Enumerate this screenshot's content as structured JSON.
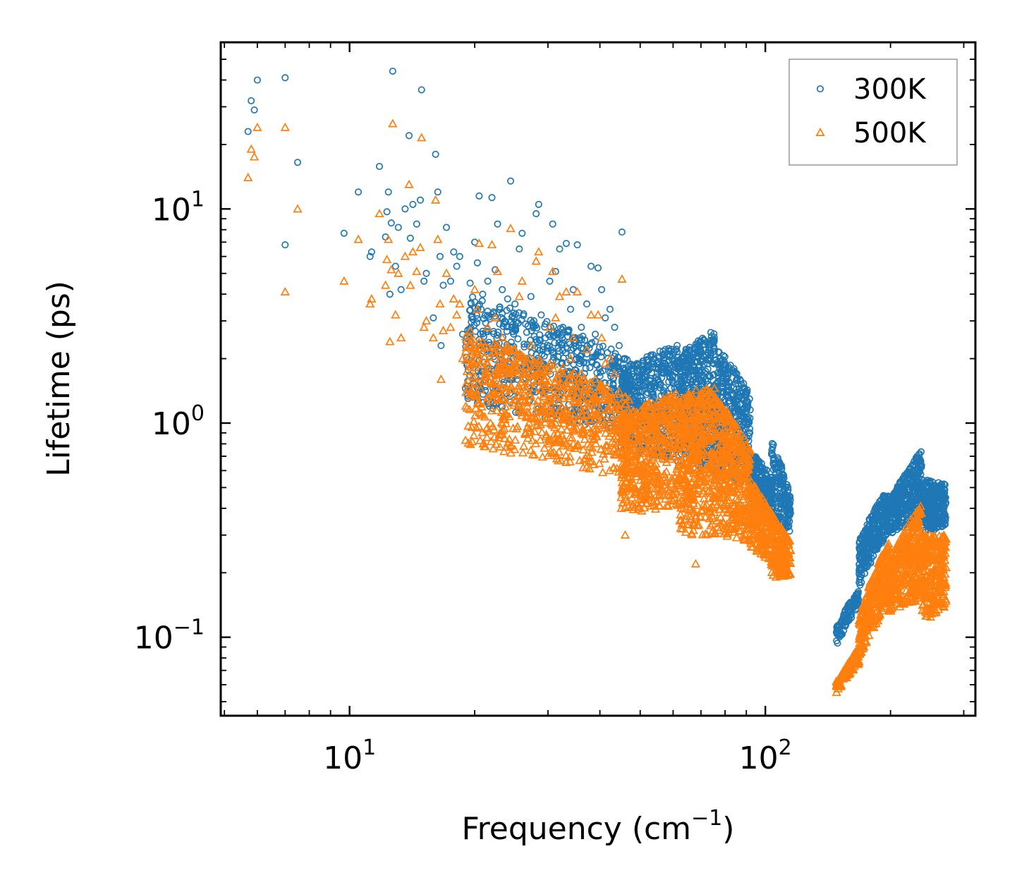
{
  "chart_data": {
    "type": "scatter",
    "title": "",
    "xlabel": "Frequency (cm",
    "xlabel_sup": "−1",
    "xlabel_end": ")",
    "ylabel": "Lifetime (ps)",
    "xscale": "log",
    "yscale": "log",
    "xlim": [
      4.9,
      320
    ],
    "ylim": [
      0.043,
      60
    ],
    "x_ticks": [
      {
        "value": 10,
        "base": "10",
        "exp": "1"
      },
      {
        "value": 100,
        "base": "10",
        "exp": "2"
      }
    ],
    "y_ticks": [
      {
        "value": 0.1,
        "base": "10",
        "exp": "−1"
      },
      {
        "value": 1,
        "base": "10",
        "exp": "0"
      },
      {
        "value": 10,
        "base": "10",
        "exp": "1"
      }
    ],
    "legend": {
      "position": "top-right",
      "entries": [
        {
          "label": "300K",
          "marker": "circle",
          "color": "#1f77b4"
        },
        {
          "label": "500K",
          "marker": "triangle",
          "color": "#ff7f0e"
        }
      ]
    },
    "series": [
      {
        "name": "300K",
        "marker": "circle",
        "color": "#1f77b4",
        "points": [
          [
            5.7,
            23
          ],
          [
            5.8,
            32
          ],
          [
            5.9,
            29
          ],
          [
            6.0,
            40
          ],
          [
            7.0,
            41
          ],
          [
            7.0,
            6.8
          ],
          [
            7.5,
            16.5
          ],
          [
            9.7,
            7.7
          ],
          [
            10.5,
            12
          ],
          [
            11.2,
            6
          ],
          [
            11.3,
            6.3
          ],
          [
            11.8,
            15.8
          ],
          [
            12.2,
            7.4
          ],
          [
            12.3,
            9.7
          ],
          [
            12.4,
            12
          ],
          [
            12.5,
            4
          ],
          [
            12.6,
            8.6
          ],
          [
            12.7,
            44
          ],
          [
            12.9,
            5.4
          ],
          [
            13.1,
            8.2
          ],
          [
            13.3,
            4.2
          ],
          [
            13.6,
            10
          ],
          [
            13.9,
            22
          ],
          [
            14.0,
            7.3
          ],
          [
            14.2,
            10.5
          ],
          [
            14.5,
            8.5
          ],
          [
            14.8,
            11
          ],
          [
            14.9,
            36
          ],
          [
            15.1,
            4.6
          ],
          [
            15.3,
            5
          ],
          [
            15.9,
            3.1
          ],
          [
            16.1,
            18
          ],
          [
            16.3,
            12
          ],
          [
            16.5,
            6
          ],
          [
            16.6,
            2.3
          ],
          [
            16.8,
            4.4
          ],
          [
            17.1,
            8.2
          ],
          [
            17.5,
            4.6
          ],
          [
            17.8,
            6.3
          ],
          [
            18.1,
            5.4
          ],
          [
            18.4,
            6
          ],
          [
            18.7,
            2.6
          ],
          [
            19.0,
            1.45
          ],
          [
            19.5,
            4.5
          ],
          [
            20.0,
            7
          ],
          [
            20.3,
            5.6
          ],
          [
            20.5,
            11.5
          ],
          [
            20.9,
            4
          ],
          [
            21.5,
            4.6
          ],
          [
            22.0,
            11.3
          ],
          [
            22.4,
            5.2
          ],
          [
            22.7,
            8.5
          ],
          [
            23.3,
            4.2
          ],
          [
            24.0,
            3.8
          ],
          [
            24.4,
            13.5
          ],
          [
            25.0,
            3.6
          ],
          [
            25.6,
            6.5
          ],
          [
            26.0,
            7.7
          ],
          [
            26.5,
            2.9
          ],
          [
            27.3,
            3.9
          ],
          [
            28.1,
            9.5
          ],
          [
            28.5,
            10.5
          ],
          [
            28.9,
            3.2
          ],
          [
            29.6,
            2.5
          ],
          [
            30.3,
            4.6
          ],
          [
            30.8,
            8.5
          ],
          [
            31.3,
            5.1
          ],
          [
            32.0,
            6.5
          ],
          [
            32.6,
            2.8
          ],
          [
            33.2,
            6.9
          ],
          [
            34.0,
            3.4
          ],
          [
            34.5,
            4.2
          ],
          [
            35.3,
            6.8
          ],
          [
            36.1,
            2.8
          ],
          [
            37.2,
            3.6
          ],
          [
            38.1,
            5.4
          ],
          [
            39.0,
            2.6
          ],
          [
            39.6,
            5.3
          ],
          [
            40.4,
            4.2
          ],
          [
            41.2,
            3.1
          ],
          [
            42.3,
            3.4
          ],
          [
            43.4,
            2.8
          ],
          [
            44.5,
            2.3
          ],
          [
            45.2,
            7.8
          ],
          [
            46.0,
            2.0
          ],
          [
            47.1,
            1.5
          ]
        ],
        "clusters": [
          {
            "x0": 19,
            "x1": 47,
            "ylo_start": 1.2,
            "ylo_end": 0.9,
            "yhi_start": 4.0,
            "yhi_end": 2.0,
            "n": 700
          },
          {
            "x0": 45,
            "x1": 62,
            "ylo_start": 0.75,
            "ylo_end": 0.65,
            "yhi_start": 1.8,
            "yhi_end": 2.35,
            "n": 500
          },
          {
            "x0": 62,
            "x1": 76,
            "ylo_start": 0.65,
            "ylo_end": 0.58,
            "yhi_start": 2.1,
            "yhi_end": 2.75,
            "n": 450
          },
          {
            "x0": 76,
            "x1": 92,
            "ylo_start": 0.55,
            "ylo_end": 0.5,
            "yhi_start": 2.3,
            "yhi_end": 1.35,
            "n": 380
          },
          {
            "x0": 92,
            "x1": 104,
            "ylo_start": 0.42,
            "ylo_end": 0.36,
            "yhi_start": 0.75,
            "yhi_end": 0.55,
            "n": 220
          },
          {
            "x0": 103,
            "x1": 115,
            "ylo_start": 0.34,
            "ylo_end": 0.31,
            "yhi_start": 0.85,
            "yhi_end": 0.45,
            "n": 180
          },
          {
            "x0": 148,
            "x1": 168,
            "ylo_start": 0.09,
            "ylo_end": 0.14,
            "yhi_start": 0.11,
            "yhi_end": 0.17,
            "n": 100
          },
          {
            "x0": 168,
            "x1": 198,
            "ylo_start": 0.17,
            "ylo_end": 0.3,
            "yhi_start": 0.28,
            "yhi_end": 0.5,
            "n": 320
          },
          {
            "x0": 198,
            "x1": 238,
            "ylo_start": 0.3,
            "ylo_end": 0.36,
            "yhi_start": 0.42,
            "yhi_end": 0.75,
            "n": 380
          },
          {
            "x0": 238,
            "x1": 272,
            "ylo_start": 0.3,
            "ylo_end": 0.33,
            "yhi_start": 0.55,
            "yhi_end": 0.52,
            "n": 300
          }
        ]
      },
      {
        "name": "500K",
        "marker": "triangle",
        "color": "#ff7f0e",
        "points": [
          [
            5.7,
            14
          ],
          [
            5.8,
            19
          ],
          [
            5.9,
            17.5
          ],
          [
            6.0,
            24
          ],
          [
            7.0,
            24
          ],
          [
            7.0,
            4.1
          ],
          [
            7.5,
            10
          ],
          [
            9.7,
            4.6
          ],
          [
            10.5,
            7.2
          ],
          [
            11.2,
            3.6
          ],
          [
            11.3,
            3.8
          ],
          [
            11.8,
            9.5
          ],
          [
            12.2,
            4.4
          ],
          [
            12.3,
            5.8
          ],
          [
            12.4,
            7.2
          ],
          [
            12.5,
            2.4
          ],
          [
            12.6,
            5.2
          ],
          [
            12.7,
            25
          ],
          [
            12.9,
            3.2
          ],
          [
            13.1,
            5
          ],
          [
            13.3,
            2.5
          ],
          [
            13.6,
            6
          ],
          [
            13.9,
            13
          ],
          [
            14.0,
            4.4
          ],
          [
            14.2,
            6.3
          ],
          [
            14.5,
            5.1
          ],
          [
            14.8,
            6.6
          ],
          [
            14.9,
            21.5
          ],
          [
            15.1,
            2.8
          ],
          [
            15.3,
            3
          ],
          [
            15.9,
            2.5
          ],
          [
            16.1,
            11
          ],
          [
            16.3,
            7.2
          ],
          [
            16.5,
            3.6
          ],
          [
            16.6,
            1.6
          ],
          [
            16.8,
            2.7
          ],
          [
            17.1,
            5
          ],
          [
            17.5,
            2.8
          ],
          [
            17.8,
            3.8
          ],
          [
            18.1,
            3.2
          ],
          [
            18.4,
            3.6
          ],
          [
            18.7,
            2.0
          ],
          [
            19.0,
            0.83
          ],
          [
            19.5,
            2.7
          ],
          [
            20.0,
            4.2
          ],
          [
            20.3,
            3.4
          ],
          [
            20.5,
            6.9
          ],
          [
            20.9,
            2.4
          ],
          [
            21.5,
            2.8
          ],
          [
            22.0,
            6.8
          ],
          [
            22.4,
            3.1
          ],
          [
            22.7,
            5.1
          ],
          [
            23.3,
            2.5
          ],
          [
            24.0,
            2.3
          ],
          [
            24.4,
            8.1
          ],
          [
            25.0,
            2.2
          ],
          [
            25.6,
            3.9
          ],
          [
            26.0,
            4.6
          ],
          [
            26.5,
            1.7
          ],
          [
            27.3,
            2.3
          ],
          [
            28.1,
            5.7
          ],
          [
            28.5,
            6.3
          ],
          [
            28.9,
            1.9
          ],
          [
            29.6,
            1.5
          ],
          [
            30.3,
            2.8
          ],
          [
            30.8,
            5.1
          ],
          [
            31.3,
            3.1
          ],
          [
            32.0,
            3.9
          ],
          [
            32.6,
            1.7
          ],
          [
            33.2,
            4.1
          ],
          [
            34.0,
            2.0
          ],
          [
            34.5,
            2.5
          ],
          [
            35.3,
            4.1
          ],
          [
            36.1,
            1.7
          ],
          [
            37.2,
            2.2
          ],
          [
            38.1,
            3.2
          ],
          [
            39.0,
            1.6
          ],
          [
            39.6,
            3.2
          ],
          [
            40.4,
            2.5
          ],
          [
            41.2,
            1.9
          ],
          [
            42.3,
            2.0
          ],
          [
            43.4,
            1.7
          ],
          [
            44.5,
            1.4
          ],
          [
            45.2,
            4.7
          ],
          [
            46.0,
            0.3
          ],
          [
            68.0,
            0.22
          ]
        ],
        "clusters": [
          {
            "x0": 19,
            "x1": 47,
            "ylo_start": 0.78,
            "ylo_end": 0.55,
            "yhi_start": 2.6,
            "yhi_end": 1.3,
            "n": 700
          },
          {
            "x0": 45,
            "x1": 62,
            "ylo_start": 0.38,
            "ylo_end": 0.4,
            "yhi_start": 1.1,
            "yhi_end": 1.4,
            "n": 500
          },
          {
            "x0": 62,
            "x1": 76,
            "ylo_start": 0.3,
            "ylo_end": 0.3,
            "yhi_start": 1.3,
            "yhi_end": 1.6,
            "n": 450
          },
          {
            "x0": 76,
            "x1": 92,
            "ylo_start": 0.3,
            "ylo_end": 0.28,
            "yhi_start": 1.35,
            "yhi_end": 0.75,
            "n": 380
          },
          {
            "x0": 92,
            "x1": 104,
            "ylo_start": 0.26,
            "ylo_end": 0.22,
            "yhi_start": 0.55,
            "yhi_end": 0.38,
            "n": 220
          },
          {
            "x0": 103,
            "x1": 115,
            "ylo_start": 0.19,
            "ylo_end": 0.19,
            "yhi_start": 0.38,
            "yhi_end": 0.28,
            "n": 180
          },
          {
            "x0": 148,
            "x1": 168,
            "ylo_start": 0.054,
            "ylo_end": 0.075,
            "yhi_start": 0.062,
            "yhi_end": 0.09,
            "n": 100
          },
          {
            "x0": 168,
            "x1": 198,
            "ylo_start": 0.08,
            "ylo_end": 0.14,
            "yhi_start": 0.12,
            "yhi_end": 0.28,
            "n": 320
          },
          {
            "x0": 198,
            "x1": 238,
            "ylo_start": 0.13,
            "ylo_end": 0.15,
            "yhi_start": 0.22,
            "yhi_end": 0.42,
            "n": 380
          },
          {
            "x0": 238,
            "x1": 272,
            "ylo_start": 0.12,
            "ylo_end": 0.13,
            "yhi_start": 0.3,
            "yhi_end": 0.3,
            "n": 300
          }
        ]
      }
    ]
  }
}
